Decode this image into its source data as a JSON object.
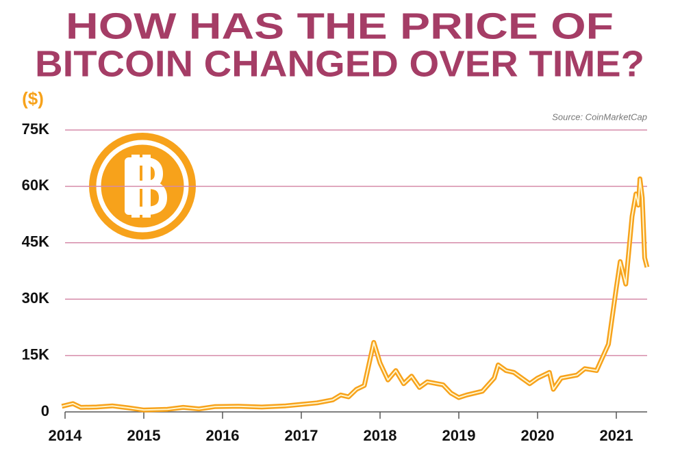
{
  "chart_data": {
    "type": "line",
    "title": [
      "HOW HAS THE PRICE OF",
      "BITCOIN CHANGED OVER TIME?"
    ],
    "y_label": "($)",
    "source": "Source: CoinMarketCap",
    "grid": true,
    "xlim": [
      2013.95,
      2021.42
    ],
    "xticks": [
      2014,
      2015,
      2016,
      2017,
      2018,
      2019,
      2020,
      2021
    ],
    "ylim": [
      0,
      75000
    ],
    "yticks": [
      0,
      {
        "value": 15000,
        "label": "15K"
      },
      {
        "value": 30000,
        "label": "30K"
      },
      {
        "value": 45000,
        "label": "45K"
      },
      {
        "value": 60000,
        "label": "60K"
      },
      {
        "value": 75000,
        "label": "75K"
      }
    ],
    "series": [
      {
        "color": "#f7a21b",
        "x": [
          2013.96,
          2014.1,
          2014.2,
          2014.4,
          2014.6,
          2014.8,
          2015.0,
          2015.3,
          2015.5,
          2015.7,
          2015.9,
          2016.2,
          2016.5,
          2016.8,
          2017.0,
          2017.2,
          2017.4,
          2017.5,
          2017.6,
          2017.7,
          2017.8,
          2017.92,
          2018.0,
          2018.1,
          2018.2,
          2018.3,
          2018.4,
          2018.5,
          2018.6,
          2018.8,
          2018.9,
          2019.0,
          2019.1,
          2019.3,
          2019.45,
          2019.5,
          2019.6,
          2019.7,
          2019.8,
          2019.9,
          2020.0,
          2020.15,
          2020.2,
          2020.3,
          2020.5,
          2020.6,
          2020.75,
          2020.9,
          2021.0,
          2021.05,
          2021.12,
          2021.2,
          2021.25,
          2021.28,
          2021.3,
          2021.33,
          2021.36,
          2021.39
        ],
        "values": [
          1500,
          2200,
          1200,
          1300,
          1600,
          1100,
          500,
          700,
          1200,
          800,
          1400,
          1500,
          1300,
          1600,
          2000,
          2400,
          3200,
          4500,
          4000,
          6000,
          7000,
          18500,
          13000,
          8500,
          11000,
          7500,
          9500,
          6500,
          8000,
          7200,
          5000,
          3800,
          4500,
          5500,
          9000,
          12500,
          11000,
          10500,
          9000,
          7500,
          9000,
          10500,
          6000,
          9000,
          9800,
          11500,
          11000,
          18000,
          33000,
          40000,
          34000,
          52000,
          58000,
          55000,
          62000,
          57000,
          41000,
          38500
        ]
      }
    ]
  }
}
